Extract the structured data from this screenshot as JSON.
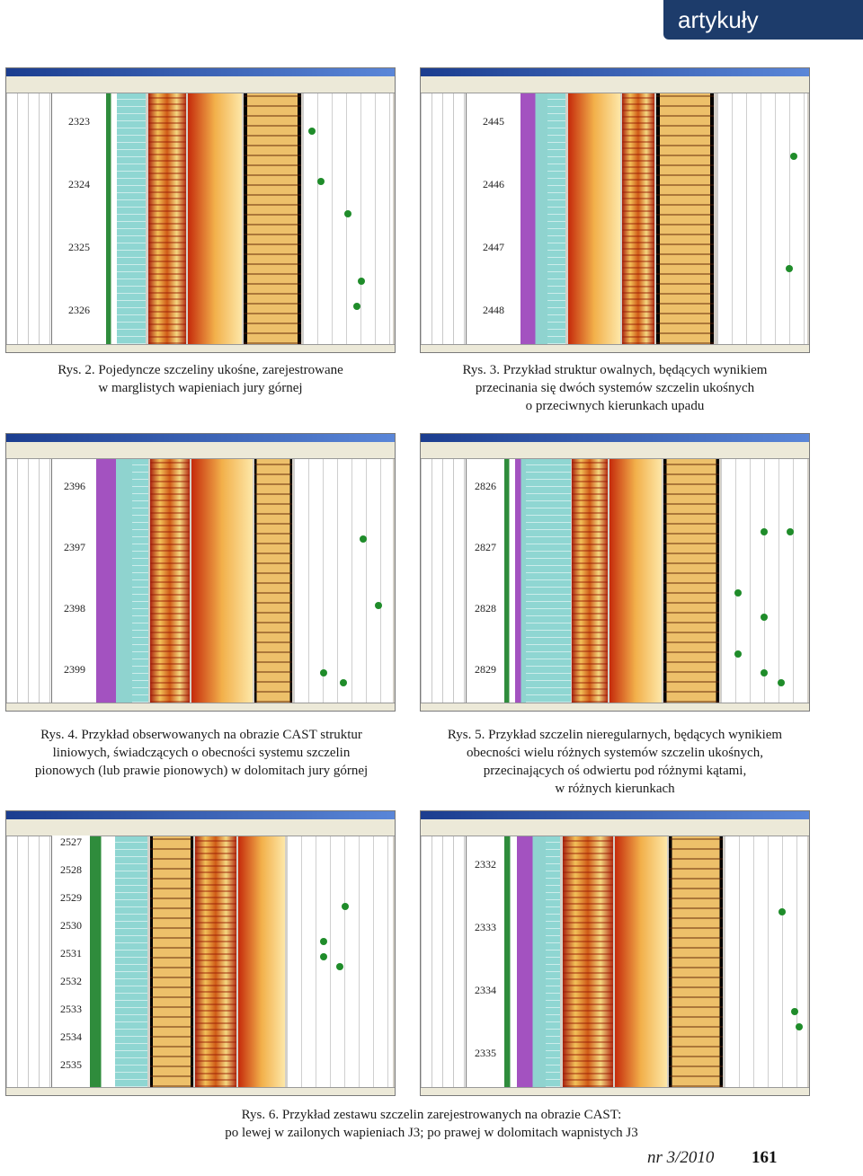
{
  "header": {
    "section_tag": "artykuły"
  },
  "figures": [
    {
      "id": "rys2",
      "depths": [
        "2323",
        "2324",
        "2325",
        "2326"
      ],
      "caption": "Rys. 2. Pojedyncze szczeliny ukośne, zarejestrowane\nw marglistych wapieniach jury górnej"
    },
    {
      "id": "rys3",
      "depths": [
        "2445",
        "2446",
        "2447",
        "2448"
      ],
      "caption": "Rys. 3. Przykład struktur owalnych, będących wynikiem\nprzecinania się dwóch systemów szczelin ukośnych\no przeciwnych kierunkach upadu"
    },
    {
      "id": "rys4",
      "depths": [
        "2396",
        "2397",
        "2398",
        "2399"
      ],
      "caption": "Rys. 4. Przykład obserwowanych na obrazie CAST struktur\nliniowych, świadczących o obecności systemu szczelin\npionowych (lub prawie pionowych) w dolomitach jury górnej"
    },
    {
      "id": "rys5",
      "depths": [
        "2826",
        "2827",
        "2828",
        "2829"
      ],
      "caption": "Rys. 5. Przykład szczelin nieregularnych, będących wynikiem\nobecności wielu różnych systemów szczelin ukośnych,\nprzecinających oś odwiertu pod różnymi kątami,\nw różnych kierunkach"
    },
    {
      "id": "rys6a",
      "depths": [
        "2527",
        "2528",
        "2529",
        "2530",
        "2531",
        "2532",
        "2533",
        "2534",
        "2535"
      ]
    },
    {
      "id": "rys6b",
      "depths": [
        "2332",
        "2333",
        "2334",
        "2335"
      ]
    }
  ],
  "caption6": "Rys. 6. Przykład zestawu szczelin zarejestrowanych na obrazie CAST:\npo lewej w zailonych wapieniach J3; po prawej w dolomitach wapnistych J3",
  "footer": {
    "issue": "nr 3/2010",
    "page": "161"
  },
  "colors": {
    "accent_tag": "#1d3c6b",
    "green_curve": "#2f8c3c",
    "violet": "#a352c0",
    "cyan": "#8fd6d2"
  }
}
